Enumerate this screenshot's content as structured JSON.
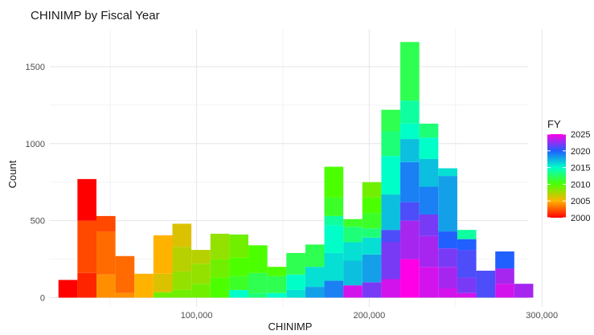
{
  "chart_data": {
    "type": "bar",
    "subtype": "stacked-histogram",
    "title": "CHINIMP by Fiscal Year",
    "xlabel": "CHINIMP",
    "ylabel": "Count",
    "xlim": [
      15000,
      292000
    ],
    "ylim": [
      -60,
      1745
    ],
    "x_ticks": [
      100000,
      200000,
      300000
    ],
    "x_tick_labels": [
      "100,000",
      "200,000",
      "300,000"
    ],
    "y_ticks": [
      0,
      500,
      1000,
      1500
    ],
    "y_tick_labels": [
      "0",
      "500",
      "1000",
      "1500"
    ],
    "grid": true,
    "legend": {
      "title": "FY",
      "placement": "right",
      "scale": [
        2000,
        2025
      ],
      "tick_values": [
        2000,
        2005,
        2010,
        2015,
        2020,
        2025
      ],
      "tick_labels": [
        "2000",
        "2005",
        "2010",
        "2015",
        "2020",
        "2025"
      ]
    },
    "color_scale": "rainbow (2000 red -> 2025 magenta)",
    "bins": [
      {
        "x0": 20000,
        "x1": 31000,
        "segments": [
          {
            "fy": 2000,
            "count": 115
          }
        ]
      },
      {
        "x0": 31000,
        "x1": 42000,
        "segments": [
          {
            "fy": 2001,
            "count": 160
          },
          {
            "fy": 2002,
            "count": 340
          },
          {
            "fy": 2000,
            "count": 270
          }
        ]
      },
      {
        "x0": 42000,
        "x1": 53000,
        "segments": [
          {
            "fy": 2004,
            "count": 150
          },
          {
            "fy": 2003,
            "count": 280
          },
          {
            "fy": 2002,
            "count": 100
          }
        ]
      },
      {
        "x0": 53000,
        "x1": 64000,
        "segments": [
          {
            "fy": 2004,
            "count": 30
          },
          {
            "fy": 2003,
            "count": 240
          }
        ]
      },
      {
        "x0": 64000,
        "x1": 75000,
        "segments": [
          {
            "fy": 2005,
            "count": 155
          }
        ]
      },
      {
        "x0": 75000,
        "x1": 86000,
        "segments": [
          {
            "fy": 2009,
            "count": 35
          },
          {
            "fy": 2006,
            "count": 120
          },
          {
            "fy": 2005,
            "count": 250
          }
        ]
      },
      {
        "x0": 86000,
        "x1": 97000,
        "segments": [
          {
            "fy": 2009,
            "count": 50
          },
          {
            "fy": 2008,
            "count": 120
          },
          {
            "fy": 2007,
            "count": 160
          },
          {
            "fy": 2006,
            "count": 150
          }
        ]
      },
      {
        "x0": 97000,
        "x1": 108000,
        "segments": [
          {
            "fy": 2009,
            "count": 90
          },
          {
            "fy": 2008,
            "count": 130
          },
          {
            "fy": 2007,
            "count": 90
          }
        ]
      },
      {
        "x0": 108000,
        "x1": 119000,
        "segments": [
          {
            "fy": 2010,
            "count": 130
          },
          {
            "fy": 2009,
            "count": 120
          },
          {
            "fy": 2008,
            "count": 165
          }
        ]
      },
      {
        "x0": 119000,
        "x1": 130000,
        "segments": [
          {
            "fy": 2015,
            "count": 50
          },
          {
            "fy": 2011,
            "count": 90
          },
          {
            "fy": 2010,
            "count": 120
          },
          {
            "fy": 2009,
            "count": 150
          }
        ]
      },
      {
        "x0": 130000,
        "x1": 141000,
        "segments": [
          {
            "fy": 2013,
            "count": 30
          },
          {
            "fy": 2012,
            "count": 130
          },
          {
            "fy": 2010,
            "count": 180
          }
        ]
      },
      {
        "x0": 141000,
        "x1": 152000,
        "segments": [
          {
            "fy": 2015,
            "count": 30
          },
          {
            "fy": 2012,
            "count": 110
          },
          {
            "fy": 2010,
            "count": 60
          }
        ]
      },
      {
        "x0": 152000,
        "x1": 163000,
        "segments": [
          {
            "fy": 2016,
            "count": 50
          },
          {
            "fy": 2015,
            "count": 100
          },
          {
            "fy": 2012,
            "count": 140
          }
        ]
      },
      {
        "x0": 163000,
        "x1": 174000,
        "segments": [
          {
            "fy": 2018,
            "count": 70
          },
          {
            "fy": 2016,
            "count": 130
          },
          {
            "fy": 2012,
            "count": 145
          }
        ]
      },
      {
        "x0": 174000,
        "x1": 185000,
        "segments": [
          {
            "fy": 2019,
            "count": 110
          },
          {
            "fy": 2016,
            "count": 180
          },
          {
            "fy": 2015,
            "count": 180
          },
          {
            "fy": 2014,
            "count": 60
          },
          {
            "fy": 2011,
            "count": 120
          },
          {
            "fy": 2010,
            "count": 200
          }
        ]
      },
      {
        "x0": 185000,
        "x1": 196000,
        "segments": [
          {
            "fy": 2024,
            "count": 80
          },
          {
            "fy": 2017,
            "count": 160
          },
          {
            "fy": 2016,
            "count": 120
          },
          {
            "fy": 2013,
            "count": 100
          },
          {
            "fy": 2011,
            "count": 50
          }
        ]
      },
      {
        "x0": 196000,
        "x1": 207000,
        "segments": [
          {
            "fy": 2022,
            "count": 100
          },
          {
            "fy": 2018,
            "count": 180
          },
          {
            "fy": 2016,
            "count": 110
          },
          {
            "fy": 2013,
            "count": 60
          },
          {
            "fy": 2011,
            "count": 100
          },
          {
            "fy": 2010,
            "count": 100
          },
          {
            "fy": 2009,
            "count": 100
          }
        ]
      },
      {
        "x0": 207000,
        "x1": 218000,
        "segments": [
          {
            "fy": 2024,
            "count": 120
          },
          {
            "fy": 2022,
            "count": 240
          },
          {
            "fy": 2021,
            "count": 80
          },
          {
            "fy": 2017,
            "count": 230
          },
          {
            "fy": 2015,
            "count": 250
          },
          {
            "fy": 2013,
            "count": 160
          },
          {
            "fy": 2012,
            "count": 140
          }
        ]
      },
      {
        "x0": 218000,
        "x1": 229000,
        "segments": [
          {
            "fy": 2025,
            "count": 250
          },
          {
            "fy": 2023,
            "count": 250
          },
          {
            "fy": 2021,
            "count": 120
          },
          {
            "fy": 2019,
            "count": 260
          },
          {
            "fy": 2017,
            "count": 150
          },
          {
            "fy": 2015,
            "count": 100
          },
          {
            "fy": 2014,
            "count": 150
          },
          {
            "fy": 2012,
            "count": 380
          }
        ]
      },
      {
        "x0": 229000,
        "x1": 240000,
        "segments": [
          {
            "fy": 2024,
            "count": 200
          },
          {
            "fy": 2023,
            "count": 200
          },
          {
            "fy": 2022,
            "count": 140
          },
          {
            "fy": 2019,
            "count": 180
          },
          {
            "fy": 2017,
            "count": 180
          },
          {
            "fy": 2015,
            "count": 140
          },
          {
            "fy": 2013,
            "count": 90
          }
        ]
      },
      {
        "x0": 240000,
        "x1": 251000,
        "segments": [
          {
            "fy": 2024,
            "count": 60
          },
          {
            "fy": 2023,
            "count": 140
          },
          {
            "fy": 2022,
            "count": 120
          },
          {
            "fy": 2020,
            "count": 110
          },
          {
            "fy": 2018,
            "count": 360
          },
          {
            "fy": 2016,
            "count": 50
          }
        ]
      },
      {
        "x0": 251000,
        "x1": 262000,
        "segments": [
          {
            "fy": 2024,
            "count": 30
          },
          {
            "fy": 2022,
            "count": 100
          },
          {
            "fy": 2021,
            "count": 180
          },
          {
            "fy": 2020,
            "count": 70
          },
          {
            "fy": 2014,
            "count": 60
          }
        ]
      },
      {
        "x0": 262000,
        "x1": 273000,
        "segments": [
          {
            "fy": 2021,
            "count": 175
          }
        ]
      },
      {
        "x0": 273000,
        "x1": 284000,
        "segments": [
          {
            "fy": 2024,
            "count": 90
          },
          {
            "fy": 2023,
            "count": 100
          },
          {
            "fy": 2020,
            "count": 110
          }
        ]
      },
      {
        "x0": 284000,
        "x1": 295000,
        "segments": [
          {
            "fy": 2023,
            "count": 90
          }
        ]
      }
    ]
  }
}
